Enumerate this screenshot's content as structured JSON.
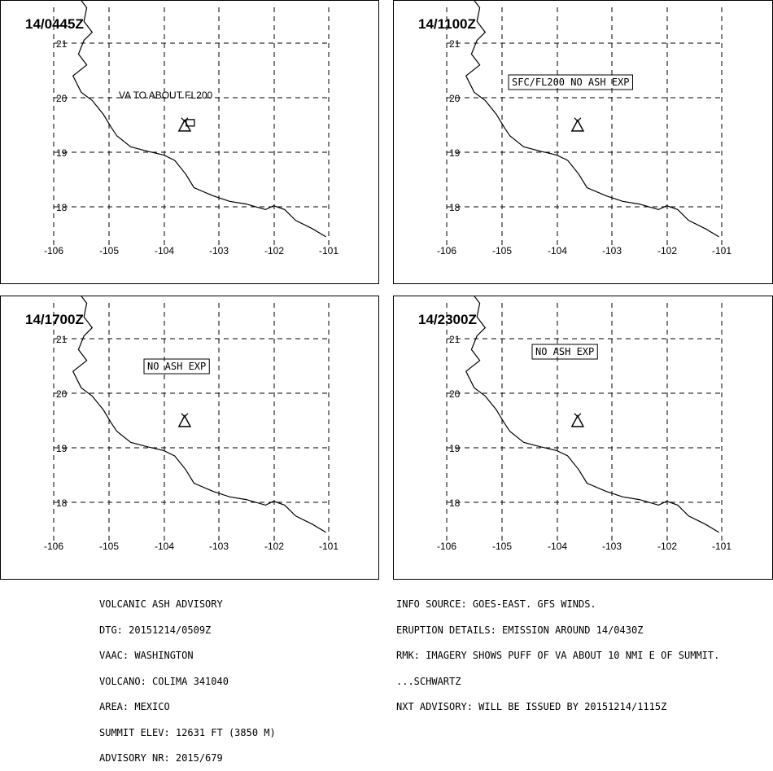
{
  "panels": [
    {
      "time": "14/0445Z",
      "text": "VA TO ABOUT FL200",
      "boxed": false,
      "ash_area": true
    },
    {
      "time": "14/1100Z",
      "text": "SFC/FL200 NO ASH EXP",
      "boxed": true,
      "ash_area": false
    },
    {
      "time": "14/1700Z",
      "text": "NO ASH EXP",
      "boxed": true,
      "ash_area": false
    },
    {
      "time": "14/2300Z",
      "text": "NO ASH EXP",
      "boxed": true,
      "ash_area": false
    }
  ],
  "axes": {
    "lon_labels": [
      "-106",
      "-105",
      "-104",
      "-103",
      "-102",
      "-101"
    ],
    "lat_labels": [
      "21",
      "20",
      "19",
      "18"
    ]
  },
  "volcano": {
    "lon": -103.62,
    "lat": 19.51
  },
  "coastline": [
    [
      -105.55,
      21.85
    ],
    [
      -105.4,
      21.65
    ],
    [
      -105.45,
      21.4
    ],
    [
      -105.3,
      21.2
    ],
    [
      -105.45,
      21.05
    ],
    [
      -105.55,
      20.8
    ],
    [
      -105.4,
      20.6
    ],
    [
      -105.65,
      20.4
    ],
    [
      -105.5,
      20.1
    ],
    [
      -105.3,
      19.95
    ],
    [
      -105.1,
      19.7
    ],
    [
      -104.95,
      19.45
    ],
    [
      -104.85,
      19.3
    ],
    [
      -104.6,
      19.1
    ],
    [
      -104.3,
      19.02
    ],
    [
      -104.0,
      18.95
    ],
    [
      -103.8,
      18.85
    ],
    [
      -103.6,
      18.6
    ],
    [
      -103.45,
      18.35
    ],
    [
      -103.1,
      18.2
    ],
    [
      -102.8,
      18.1
    ],
    [
      -102.5,
      18.05
    ],
    [
      -102.15,
      17.95
    ],
    [
      -102.0,
      18.02
    ],
    [
      -101.8,
      17.95
    ],
    [
      -101.6,
      17.75
    ],
    [
      -101.3,
      17.6
    ],
    [
      -101.05,
      17.45
    ]
  ],
  "footer_left": [
    "VOLCANIC ASH ADVISORY",
    "DTG: 20151214/0509Z",
    "VAAC: WASHINGTON",
    "VOLCANO: COLIMA 341040",
    "AREA: MEXICO",
    "SUMMIT ELEV: 12631 FT (3850 M)",
    "ADVISORY NR: 2015/679"
  ],
  "footer_right": [
    "INFO SOURCE: GOES-EAST. GFS WINDS.",
    "ERUPTION DETAILS: EMISSION AROUND 14/0430Z",
    "RMK: IMAGERY SHOWS PUFF OF VA ABOUT 10 NMI E OF SUMMIT.",
    "...SCHWARTZ",
    "NXT ADVISORY: WILL BE ISSUED BY 20151214/1115Z"
  ]
}
